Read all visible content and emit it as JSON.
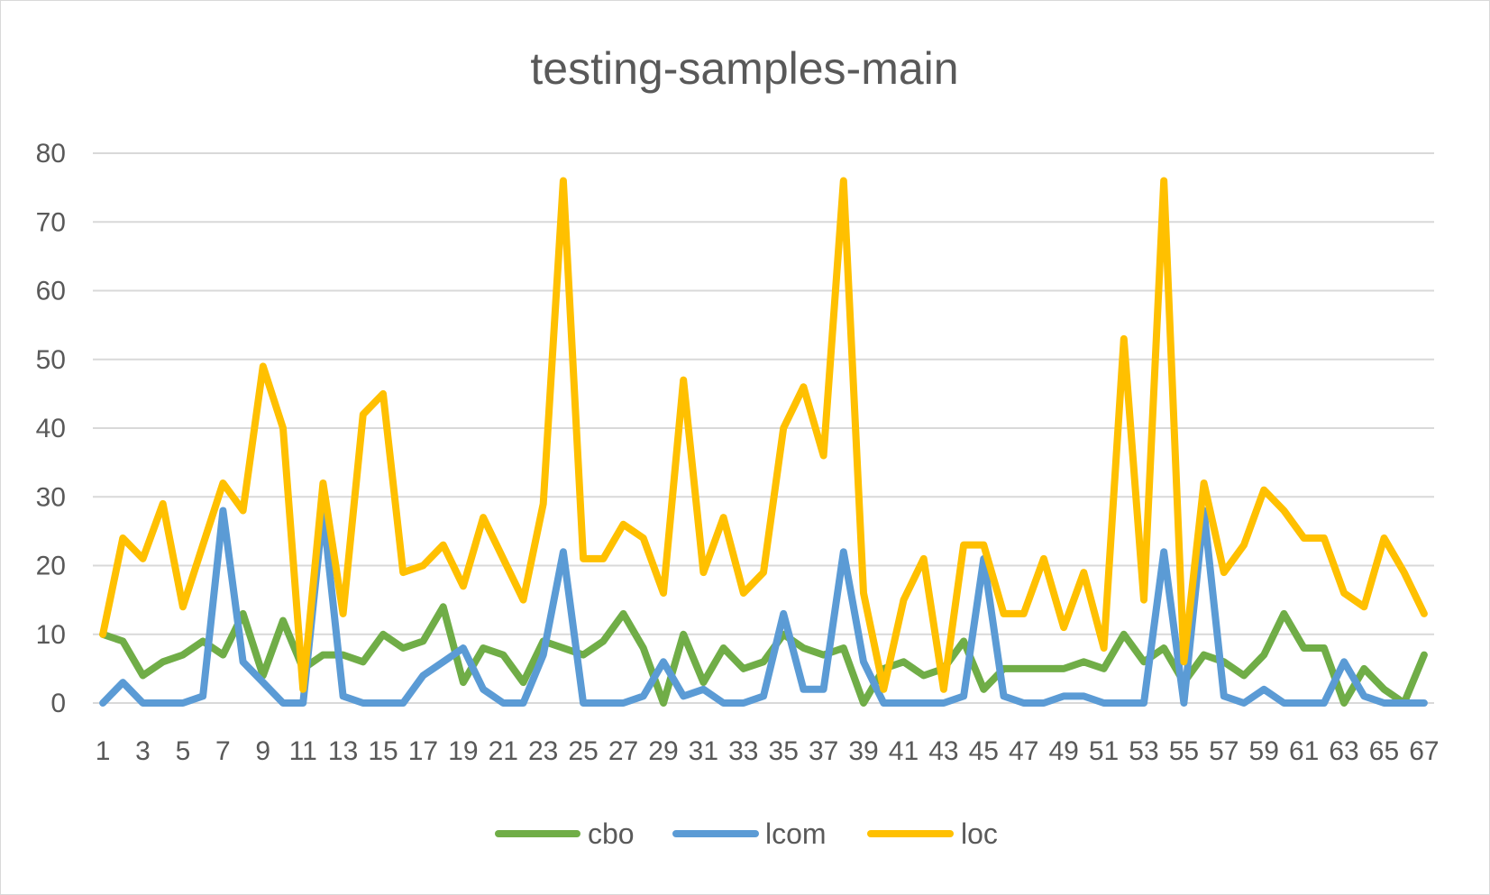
{
  "chart_data": {
    "type": "line",
    "title": "testing-samples-main",
    "xlabel": "",
    "ylabel": "",
    "ylim": [
      0,
      80
    ],
    "yticks": [
      0,
      10,
      20,
      30,
      40,
      50,
      60,
      70,
      80
    ],
    "x": [
      1,
      2,
      3,
      4,
      5,
      6,
      7,
      8,
      9,
      10,
      11,
      12,
      13,
      14,
      15,
      16,
      17,
      18,
      19,
      20,
      21,
      22,
      23,
      24,
      25,
      26,
      27,
      28,
      29,
      30,
      31,
      32,
      33,
      34,
      35,
      36,
      37,
      38,
      39,
      40,
      41,
      42,
      43,
      44,
      45,
      46,
      47,
      48,
      49,
      50,
      51,
      52,
      53,
      54,
      55,
      56,
      57,
      58,
      59,
      60,
      61,
      62,
      63,
      64,
      65,
      66,
      67
    ],
    "xtick_labels": [
      "1",
      "3",
      "5",
      "7",
      "9",
      "11",
      "13",
      "15",
      "17",
      "19",
      "21",
      "23",
      "25",
      "27",
      "29",
      "31",
      "33",
      "35",
      "37",
      "39",
      "41",
      "43",
      "45",
      "47",
      "49",
      "51",
      "53",
      "55",
      "57",
      "59",
      "61",
      "63",
      "65",
      "67"
    ],
    "grid": true,
    "legend_position": "bottom",
    "series": [
      {
        "name": "cbo",
        "color": "#70ad47",
        "values": [
          10,
          9,
          4,
          6,
          7,
          9,
          7,
          13,
          4,
          12,
          5,
          7,
          7,
          6,
          10,
          8,
          9,
          14,
          3,
          8,
          7,
          3,
          9,
          8,
          7,
          9,
          13,
          8,
          0,
          10,
          3,
          8,
          5,
          6,
          10,
          8,
          7,
          8,
          0,
          5,
          6,
          4,
          5,
          9,
          2,
          5,
          5,
          5,
          5,
          6,
          5,
          10,
          6,
          8,
          3,
          7,
          6,
          4,
          7,
          13,
          8,
          8,
          0,
          5,
          2,
          0,
          7
        ]
      },
      {
        "name": "lcom",
        "color": "#5b9bd5",
        "values": [
          0,
          3,
          0,
          0,
          0,
          1,
          28,
          6,
          3,
          0,
          0,
          28,
          1,
          0,
          0,
          0,
          4,
          6,
          8,
          2,
          0,
          0,
          7,
          22,
          0,
          0,
          0,
          1,
          6,
          1,
          2,
          0,
          0,
          1,
          13,
          2,
          2,
          22,
          6,
          0,
          0,
          0,
          0,
          1,
          21,
          1,
          0,
          0,
          1,
          1,
          0,
          0,
          0,
          22,
          0,
          28,
          1,
          0,
          2,
          0,
          0,
          0,
          6,
          1,
          0,
          0,
          0
        ]
      },
      {
        "name": "loc",
        "color": "#ffc000",
        "values": [
          10,
          24,
          21,
          29,
          14,
          23,
          32,
          28,
          49,
          40,
          2,
          32,
          13,
          42,
          45,
          19,
          20,
          23,
          17,
          27,
          21,
          15,
          29,
          76,
          21,
          21,
          26,
          24,
          16,
          47,
          19,
          27,
          16,
          19,
          40,
          46,
          36,
          76,
          16,
          2,
          15,
          21,
          2,
          23,
          23,
          13,
          13,
          21,
          11,
          19,
          8,
          53,
          15,
          76,
          6,
          32,
          19,
          23,
          31,
          28,
          24,
          24,
          16,
          14,
          24,
          19,
          13
        ]
      }
    ]
  }
}
